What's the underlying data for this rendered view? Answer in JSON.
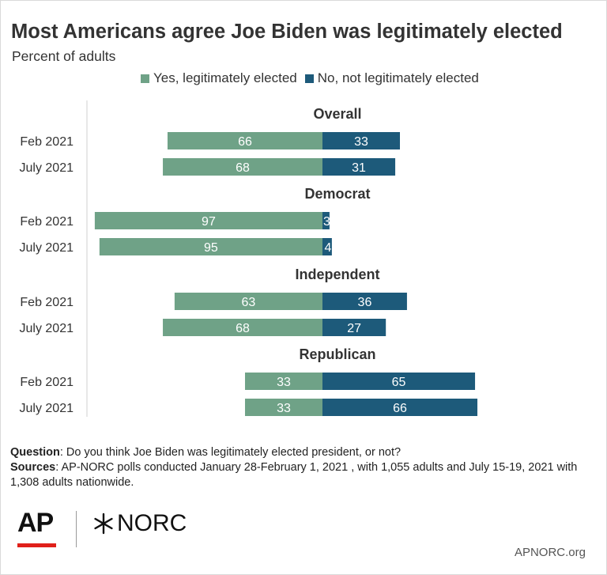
{
  "title": "Most Americans agree Joe Biden was legitimately elected",
  "subtitle": "Percent of adults",
  "colors": {
    "yes": "#6fa287",
    "no": "#1d5a7a"
  },
  "chart_data": {
    "type": "bar",
    "orientation": "horizontal-diverging",
    "series": [
      {
        "name": "Yes, legitimately elected"
      },
      {
        "name": "No, not legitimately elected"
      }
    ],
    "groups": [
      {
        "name": "Overall",
        "rows": [
          {
            "label": "Feb 2021",
            "yes": 66,
            "no": 33
          },
          {
            "label": "July 2021",
            "yes": 68,
            "no": 31
          }
        ]
      },
      {
        "name": "Democrat",
        "rows": [
          {
            "label": "Feb 2021",
            "yes": 97,
            "no": 3
          },
          {
            "label": "July 2021",
            "yes": 95,
            "no": 4
          }
        ]
      },
      {
        "name": "Independent",
        "rows": [
          {
            "label": "Feb 2021",
            "yes": 63,
            "no": 36
          },
          {
            "label": "July 2021",
            "yes": 68,
            "no": 27
          }
        ]
      },
      {
        "name": "Republican",
        "rows": [
          {
            "label": "Feb 2021",
            "yes": 33,
            "no": 65
          },
          {
            "label": "July 2021",
            "yes": 33,
            "no": 66
          }
        ]
      }
    ],
    "grid": false,
    "legend_position": "top"
  },
  "footer": {
    "question_label": "Question",
    "question_text": ": Do you think Joe Biden was legitimately elected president, or not?",
    "sources_label": "Sources",
    "sources_text": ": AP-NORC polls conducted January 28-February 1, 2021 , with 1,055 adults  and July 15-19, 2021 with 1,308 adults nationwide."
  },
  "logos": {
    "ap": "AP",
    "norc": "NORC"
  },
  "site": "APNORC.org"
}
